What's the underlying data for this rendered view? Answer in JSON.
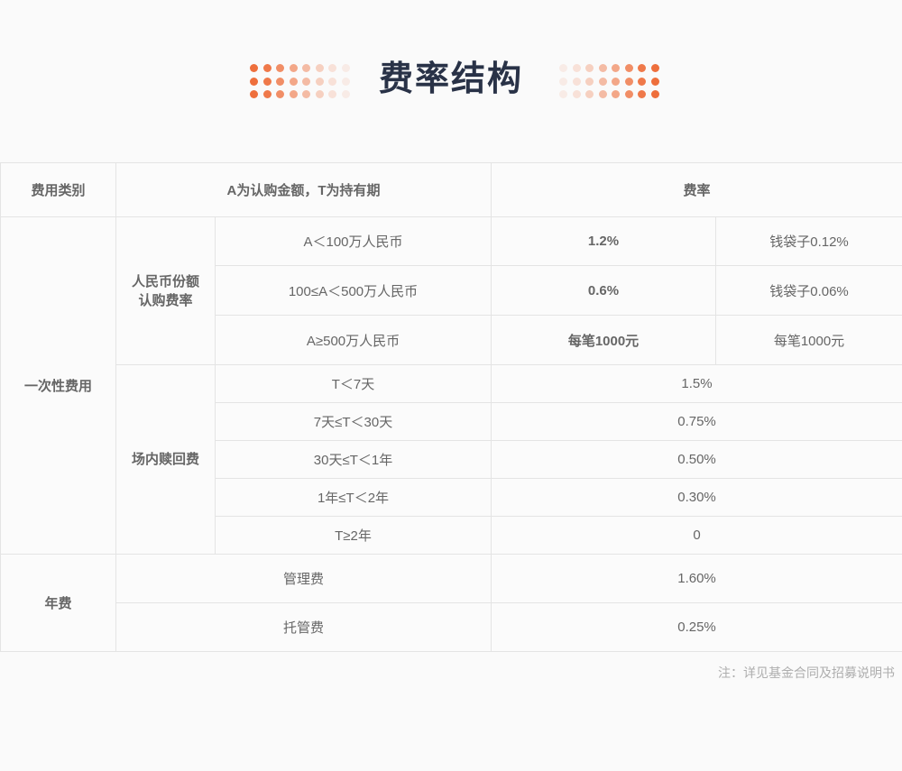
{
  "title": {
    "text": "费率结构"
  },
  "decor": {
    "accent": "#ee6f3c"
  },
  "table": {
    "header": {
      "category": "费用类别",
      "condition": "A为认购金额，T为持有期",
      "rate": "费率"
    },
    "one_time": {
      "label": "一次性费用",
      "subscription": {
        "label": "人民币份额\n认购费率",
        "rows": [
          {
            "condition": "A＜100万人民币",
            "rate": "1.2%",
            "discount": "钱袋子0.12%"
          },
          {
            "condition": "100≤A＜500万人民币",
            "rate": "0.6%",
            "discount": "钱袋子0.06%"
          },
          {
            "condition": "A≥500万人民币",
            "rate": "每笔1000元",
            "discount": "每笔1000元"
          }
        ]
      },
      "redemption": {
        "label": "场内赎回费",
        "rows": [
          {
            "condition": "T＜7天",
            "rate": "1.5%"
          },
          {
            "condition": "7天≤T＜30天",
            "rate": "0.75%"
          },
          {
            "condition": "30天≤T＜1年",
            "rate": "0.50%"
          },
          {
            "condition": "1年≤T＜2年",
            "rate": "0.30%"
          },
          {
            "condition": "T≥2年",
            "rate": "0"
          }
        ]
      }
    },
    "annual": {
      "label": "年费",
      "rows": [
        {
          "condition": "管理费",
          "rate": "1.60%"
        },
        {
          "condition": "托管费",
          "rate": "0.25%"
        }
      ]
    }
  },
  "note": "注：详见基金合同及招募说明书"
}
